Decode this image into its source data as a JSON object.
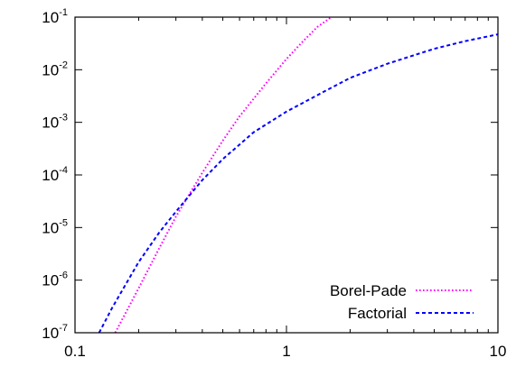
{
  "chart_data": {
    "type": "line",
    "title": "",
    "xlabel": "",
    "ylabel": "",
    "x_scale": "log",
    "y_scale": "log",
    "xlim": [
      0.1,
      10
    ],
    "ylim": [
      1e-07,
      0.1
    ],
    "grid": false,
    "legend_position": "bottom-right",
    "x_ticks": [
      {
        "value": 0.1,
        "label": "0.1"
      },
      {
        "value": 1,
        "label": "1"
      },
      {
        "value": 10,
        "label": "10"
      }
    ],
    "y_ticks": [
      {
        "value": 1e-07,
        "base": "10",
        "exp": "-7"
      },
      {
        "value": 1e-06,
        "base": "10",
        "exp": "-6"
      },
      {
        "value": 1e-05,
        "base": "10",
        "exp": "-5"
      },
      {
        "value": 0.0001,
        "base": "10",
        "exp": "-4"
      },
      {
        "value": 0.001,
        "base": "10",
        "exp": "-3"
      },
      {
        "value": 0.01,
        "base": "10",
        "exp": "-2"
      },
      {
        "value": 0.1,
        "base": "10",
        "exp": "-1"
      }
    ],
    "series": [
      {
        "name": "Borel-Pade",
        "color": "#ff00ff",
        "dash": "dotted",
        "x": [
          0.155,
          0.2,
          0.25,
          0.3,
          0.35,
          0.4,
          0.5,
          0.6,
          0.8,
          1.0,
          1.2,
          1.4,
          1.63
        ],
        "y": [
          1e-07,
          7e-07,
          4e-06,
          1.6e-05,
          4.5e-05,
          0.00011,
          0.00045,
          0.0013,
          0.0055,
          0.016,
          0.035,
          0.065,
          0.1
        ]
      },
      {
        "name": "Factorial",
        "color": "#0000ff",
        "dash": "dashed",
        "x": [
          0.13,
          0.15,
          0.2,
          0.25,
          0.3,
          0.4,
          0.5,
          0.7,
          1.0,
          1.5,
          2.0,
          3.0,
          5.0,
          7.0,
          10.0
        ],
        "y": [
          1e-07,
          3e-07,
          2.2e-06,
          8e-06,
          2e-05,
          8e-05,
          0.0002,
          0.00065,
          0.0016,
          0.0038,
          0.007,
          0.013,
          0.025,
          0.035,
          0.047
        ]
      }
    ]
  }
}
